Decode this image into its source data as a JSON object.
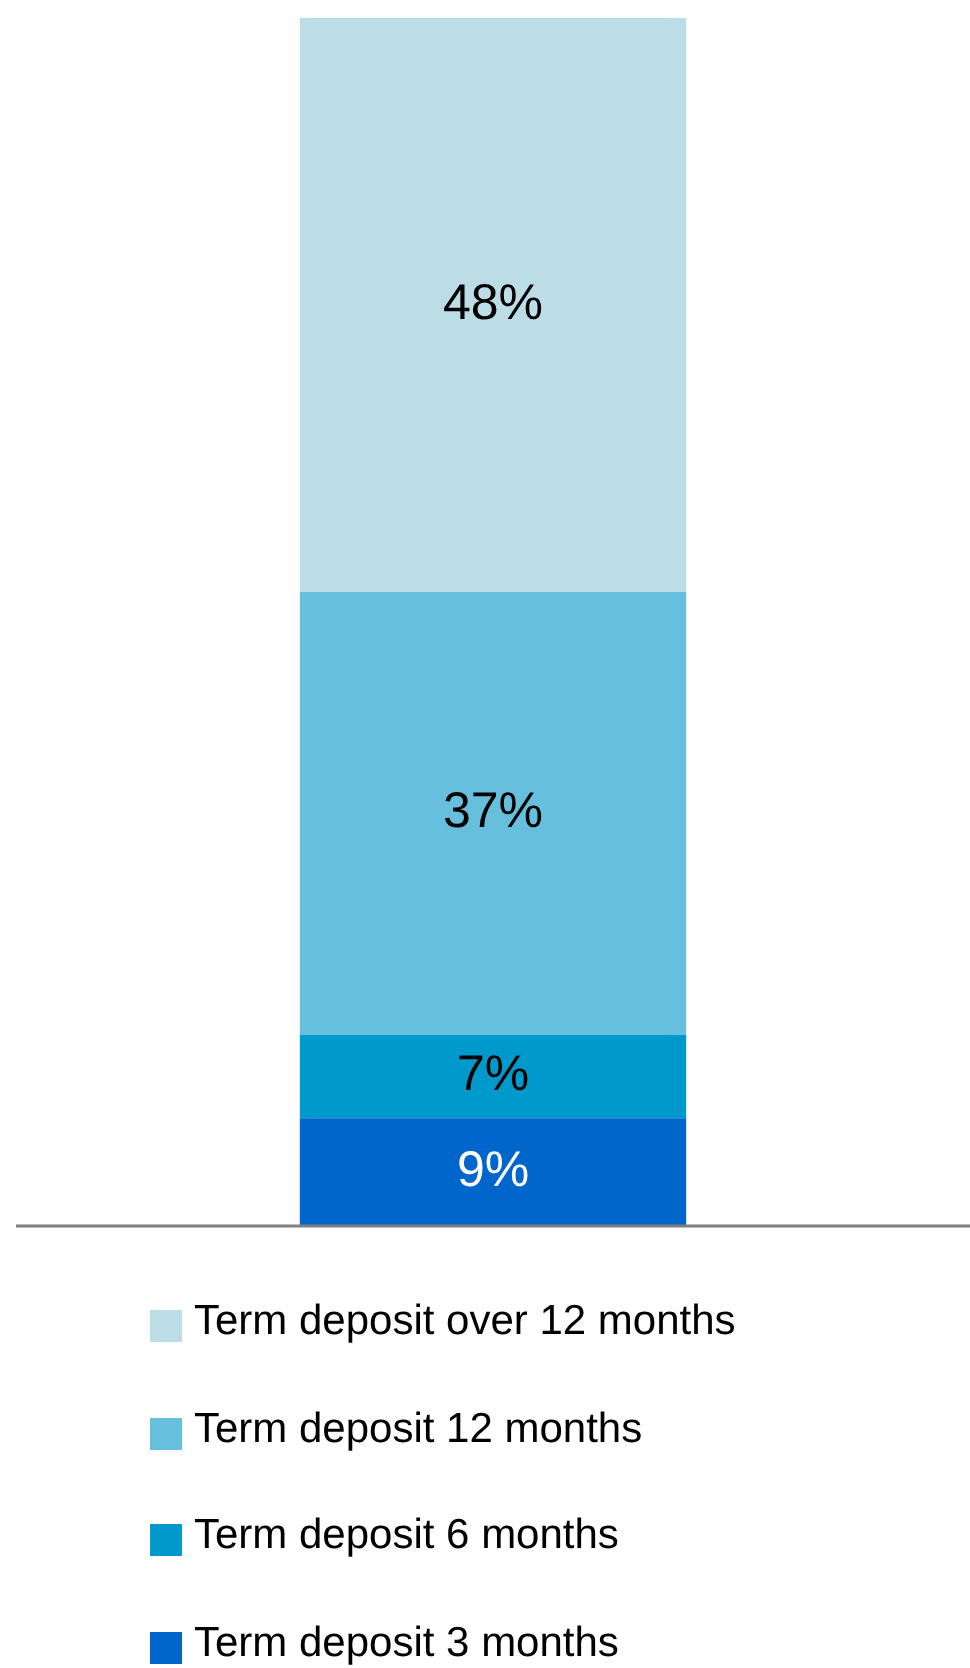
{
  "chart_data": {
    "type": "bar",
    "stacked": true,
    "categories": [
      null
    ],
    "series": [
      {
        "name": "Term deposit 3 months",
        "color": "#0066cc",
        "values": [
          9
        ],
        "value_labels": [
          "9%"
        ]
      },
      {
        "name": "Term deposit 6 months",
        "color": "#0099cc",
        "values": [
          7
        ],
        "value_labels": [
          "7%"
        ]
      },
      {
        "name": "Term deposit 12 months",
        "color": "#66bfdd",
        "values": [
          37
        ],
        "value_labels": [
          "37%"
        ]
      },
      {
        "name": "Term deposit over 12 months",
        "color": "#bcdce6",
        "values": [
          48
        ],
        "value_labels": [
          "48%"
        ]
      }
    ],
    "legend": "bottom"
  }
}
